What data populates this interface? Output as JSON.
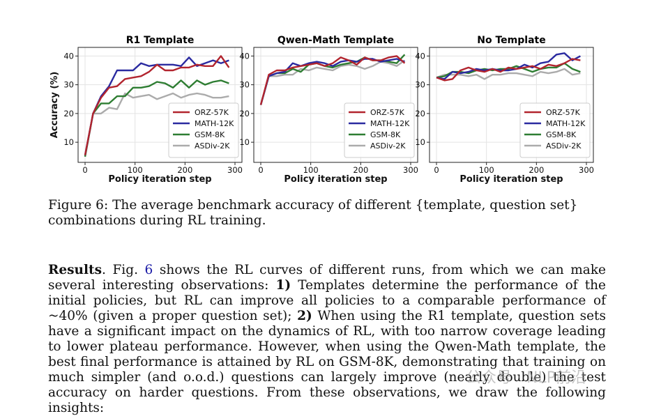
{
  "figure": {
    "caption_label": "Figure 6:",
    "caption_text": "The average benchmark accuracy of different {template, question set} combinations during RL training.",
    "colors": {
      "ORZ-57K": "#b2242e",
      "MATH-12K": "#2a2aa0",
      "GSM-8K": "#2e7d32",
      "ASDiv-2K": "#ababab"
    }
  },
  "chart_data": [
    {
      "type": "line",
      "title": "R1 Template",
      "xlabel": "Policy iteration step",
      "ylabel": "Accuracy (%)",
      "xlim": [
        0,
        300
      ],
      "ylim": [
        3,
        43
      ],
      "xticks": [
        0,
        100,
        200,
        300
      ],
      "yticks": [
        10,
        20,
        30,
        40
      ],
      "grid": true,
      "legend_position": "bottom-right",
      "x": [
        0,
        16,
        32,
        48,
        64,
        80,
        96,
        112,
        128,
        144,
        160,
        176,
        192,
        208,
        224,
        240,
        256,
        272,
        288
      ],
      "series": [
        {
          "name": "ORZ-57K",
          "values": [
            5.5,
            20.0,
            25.5,
            29.0,
            29.5,
            32.0,
            32.5,
            33.0,
            34.5,
            37.0,
            35.0,
            35.0,
            36.0,
            36.0,
            37.0,
            36.5,
            36.5,
            40.0,
            36.0
          ]
        },
        {
          "name": "MATH-12K",
          "values": [
            5.5,
            20.0,
            26.0,
            29.5,
            35.0,
            35.0,
            35.0,
            37.5,
            36.5,
            37.0,
            37.0,
            37.0,
            36.5,
            39.5,
            36.5,
            37.5,
            38.5,
            37.5,
            38.5
          ]
        },
        {
          "name": "GSM-8K",
          "values": [
            5.0,
            20.0,
            23.5,
            23.5,
            26.0,
            26.0,
            29.0,
            29.0,
            29.5,
            31.0,
            30.5,
            29.0,
            31.5,
            29.0,
            31.5,
            30.0,
            31.0,
            31.5,
            30.5
          ]
        },
        {
          "name": "ASDiv-2K",
          "values": [
            5.0,
            20.0,
            20.0,
            22.0,
            21.5,
            27.0,
            25.5,
            26.0,
            26.5,
            25.0,
            26.0,
            27.0,
            25.5,
            26.5,
            27.0,
            26.5,
            25.5,
            25.5,
            26.0
          ]
        }
      ]
    },
    {
      "type": "line",
      "title": "Qwen-Math Template",
      "xlabel": "Policy iteration step",
      "xlim": [
        0,
        300
      ],
      "ylim": [
        3,
        43
      ],
      "xticks": [
        0,
        100,
        200,
        300
      ],
      "yticks": [
        10,
        20,
        30,
        40
      ],
      "grid": true,
      "legend_position": "bottom-right",
      "x": [
        0,
        16,
        32,
        48,
        64,
        80,
        96,
        112,
        128,
        144,
        160,
        176,
        192,
        208,
        224,
        240,
        256,
        272,
        288
      ],
      "series": [
        {
          "name": "ORZ-57K",
          "values": [
            23.0,
            33.5,
            35.0,
            35.0,
            36.0,
            36.5,
            37.0,
            37.5,
            36.5,
            37.5,
            39.5,
            38.5,
            37.0,
            39.5,
            38.5,
            38.5,
            39.5,
            40.0,
            37.5
          ]
        },
        {
          "name": "MATH-12K",
          "values": [
            23.0,
            33.0,
            34.0,
            34.5,
            37.5,
            36.5,
            37.5,
            38.0,
            37.5,
            36.5,
            38.0,
            38.5,
            38.0,
            39.0,
            39.0,
            38.0,
            38.5,
            39.0,
            38.0
          ]
        },
        {
          "name": "GSM-8K",
          "values": [
            23.0,
            33.0,
            34.0,
            34.0,
            35.5,
            34.5,
            37.0,
            37.5,
            36.5,
            36.0,
            37.0,
            37.5,
            38.0,
            39.5,
            38.5,
            38.5,
            38.0,
            37.5,
            40.5
          ]
        },
        {
          "name": "ASDiv-2K",
          "values": [
            23.0,
            33.0,
            33.0,
            33.5,
            33.5,
            35.5,
            35.0,
            36.0,
            35.5,
            35.0,
            36.5,
            37.0,
            36.5,
            35.5,
            36.5,
            38.0,
            37.5,
            36.5,
            38.5
          ]
        }
      ]
    },
    {
      "type": "line",
      "title": "No Template",
      "xlabel": "Policy iteration step",
      "xlim": [
        0,
        300
      ],
      "ylim": [
        3,
        43
      ],
      "xticks": [
        0,
        100,
        200,
        300
      ],
      "yticks": [
        10,
        20,
        30,
        40
      ],
      "grid": true,
      "legend_position": "bottom-right",
      "x": [
        0,
        16,
        32,
        48,
        64,
        80,
        96,
        112,
        128,
        144,
        160,
        176,
        192,
        208,
        224,
        240,
        256,
        272,
        288
      ],
      "series": [
        {
          "name": "ORZ-57K",
          "values": [
            32.5,
            31.5,
            32.0,
            35.0,
            36.0,
            35.0,
            34.5,
            35.5,
            34.5,
            36.0,
            35.5,
            36.0,
            36.5,
            35.5,
            37.0,
            36.5,
            37.5,
            39.0,
            38.5
          ]
        },
        {
          "name": "MATH-12K",
          "values": [
            32.5,
            32.0,
            34.5,
            34.0,
            34.5,
            35.5,
            35.0,
            35.5,
            35.0,
            35.0,
            35.5,
            37.0,
            36.0,
            37.5,
            38.0,
            40.5,
            41.0,
            38.5,
            40.0
          ]
        },
        {
          "name": "GSM-8K",
          "values": [
            32.5,
            33.0,
            34.5,
            34.5,
            34.0,
            35.0,
            35.5,
            35.0,
            35.5,
            35.5,
            36.5,
            35.5,
            34.5,
            35.5,
            36.0,
            36.0,
            37.5,
            35.5,
            34.5
          ]
        },
        {
          "name": "ASDiv-2K",
          "values": [
            32.5,
            33.5,
            33.5,
            33.5,
            33.0,
            33.5,
            32.0,
            33.5,
            33.5,
            34.0,
            34.0,
            33.5,
            33.0,
            34.5,
            34.0,
            34.5,
            35.5,
            33.5,
            34.0
          ]
        }
      ]
    }
  ],
  "results": {
    "heading": "Results",
    "intro_a": ". Fig. ",
    "fig_ref": "6",
    "intro_b": " shows the RL curves of different runs, from which we can make several interesting observations: ",
    "point1_label": "1)",
    "point1_text": " Templates determine the performance of the initial policies, but RL can improve all policies to a comparable performance of ~40% (given a proper question set); ",
    "point2_label": "2)",
    "point2_text": " When using the R1 template, question sets have a significant impact on the dynamics of RL, with too narrow coverage leading to lower plateau performance. However, when using the Qwen-Math template, the best final performance is attained by RL on GSM-8K, demonstrating that training on much simpler (and o.o.d.) questions can largely improve (nearly double) the test accuracy on harder questions. From these observations, we draw the following insights:"
  },
  "watermark": "公众号 · NLP前沿"
}
